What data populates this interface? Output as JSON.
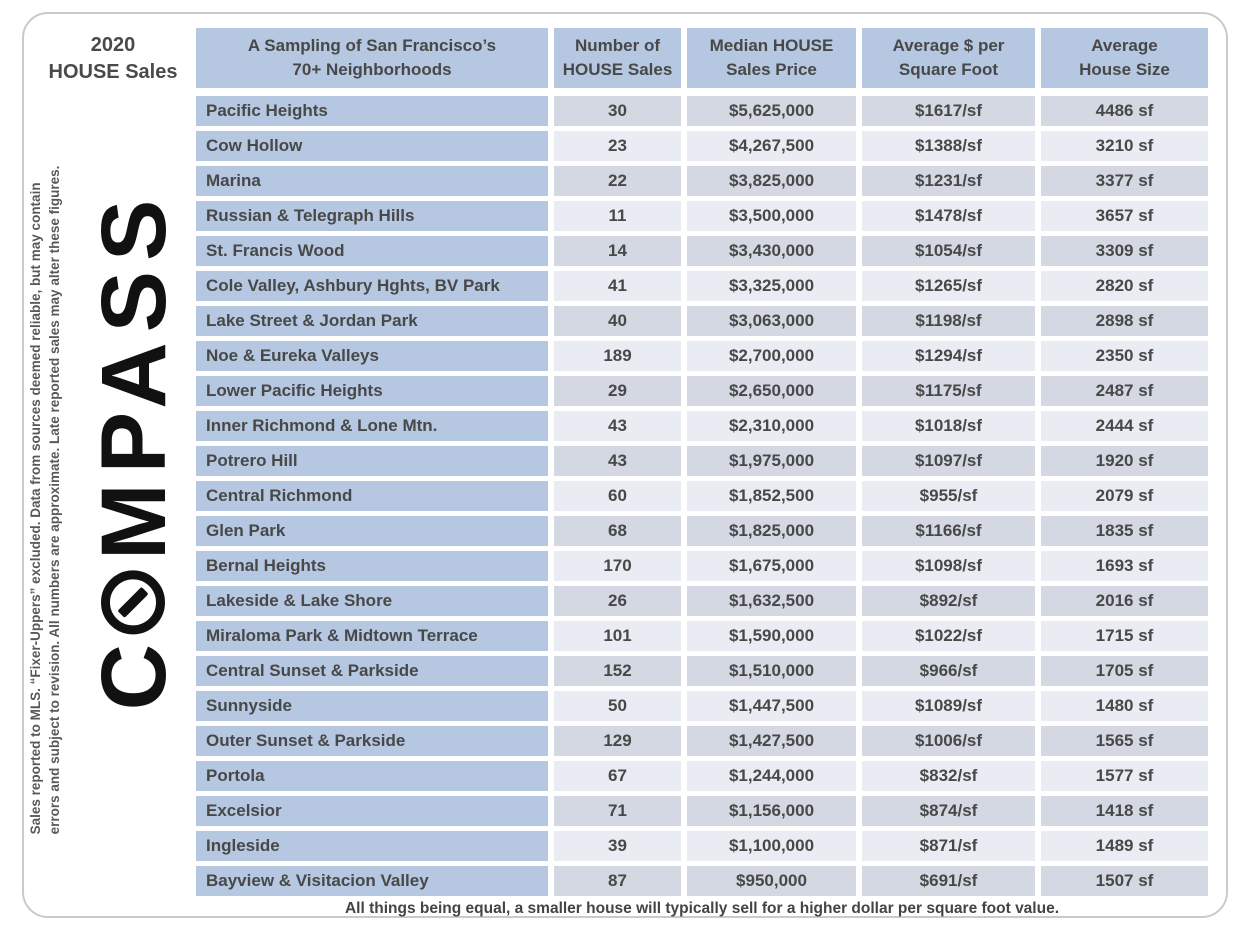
{
  "header": {
    "title_line1": "2020",
    "title_line2": "HOUSE Sales"
  },
  "sidebar": {
    "logo_brand": "COMPASS",
    "logo_letter_c": "C",
    "logo_letters_rest": "MPASS",
    "logo_o_icon": "compass-needle-in-circle",
    "disclaimer_line1": "Sales reported to MLS. “Fixer-Uppers” excluded. Data from sources deemed reliable, but may contain",
    "disclaimer_line2": "errors and subject to revision. All numbers are approximate. Late reported sales may alter these figures."
  },
  "footer": {
    "note": "All things being equal, a smaller house will typically sell for a higher dollar per square foot value."
  },
  "colors": {
    "header_blue": "#b5c7e1",
    "row_band_dark": "#d3d8e3",
    "row_band_light": "#e9ecf2",
    "table_text": "#484848",
    "frame_border": "#cacaca",
    "logo_black": "#111111"
  },
  "chart_data": {
    "type": "table",
    "title": "2020 HOUSE Sales",
    "columns": [
      {
        "line1": "A Sampling of San Francisco’s",
        "line2": "70+ Neighborhoods"
      },
      {
        "line1": "Number of",
        "line2": "HOUSE Sales"
      },
      {
        "line1": "Median HOUSE",
        "line2": "Sales Price"
      },
      {
        "line1": "Average $ per",
        "line2": "Square Foot"
      },
      {
        "line1": "Average",
        "line2": "House Size"
      }
    ],
    "rows": [
      [
        "Pacific Heights",
        "30",
        "$5,625,000",
        "$1617/sf",
        "4486 sf"
      ],
      [
        "Cow Hollow",
        "23",
        "$4,267,500",
        "$1388/sf",
        "3210 sf"
      ],
      [
        "Marina",
        "22",
        "$3,825,000",
        "$1231/sf",
        "3377 sf"
      ],
      [
        "Russian & Telegraph Hills",
        "11",
        "$3,500,000",
        "$1478/sf",
        "3657 sf"
      ],
      [
        "St. Francis Wood",
        "14",
        "$3,430,000",
        "$1054/sf",
        "3309 sf"
      ],
      [
        "Cole Valley, Ashbury Hghts, BV Park",
        "41",
        "$3,325,000",
        "$1265/sf",
        "2820 sf"
      ],
      [
        "Lake Street & Jordan Park",
        "40",
        "$3,063,000",
        "$1198/sf",
        "2898 sf"
      ],
      [
        "Noe & Eureka Valleys",
        "189",
        "$2,700,000",
        "$1294/sf",
        "2350 sf"
      ],
      [
        "Lower Pacific Heights",
        "29",
        "$2,650,000",
        "$1175/sf",
        "2487 sf"
      ],
      [
        "Inner Richmond & Lone Mtn.",
        "43",
        "$2,310,000",
        "$1018/sf",
        "2444 sf"
      ],
      [
        "Potrero Hill",
        "43",
        "$1,975,000",
        "$1097/sf",
        "1920 sf"
      ],
      [
        "Central Richmond",
        "60",
        "$1,852,500",
        "$955/sf",
        "2079 sf"
      ],
      [
        "Glen Park",
        "68",
        "$1,825,000",
        "$1166/sf",
        "1835 sf"
      ],
      [
        "Bernal Heights",
        "170",
        "$1,675,000",
        "$1098/sf",
        "1693 sf"
      ],
      [
        "Lakeside & Lake Shore",
        "26",
        "$1,632,500",
        "$892/sf",
        "2016 sf"
      ],
      [
        "Miraloma Park & Midtown Terrace",
        "101",
        "$1,590,000",
        "$1022/sf",
        "1715 sf"
      ],
      [
        "Central Sunset & Parkside",
        "152",
        "$1,510,000",
        "$966/sf",
        "1705 sf"
      ],
      [
        "Sunnyside",
        "50",
        "$1,447,500",
        "$1089/sf",
        "1480 sf"
      ],
      [
        "Outer Sunset & Parkside",
        "129",
        "$1,427,500",
        "$1006/sf",
        "1565 sf"
      ],
      [
        "Portola",
        "67",
        "$1,244,000",
        "$832/sf",
        "1577 sf"
      ],
      [
        "Excelsior",
        "71",
        "$1,156,000",
        "$874/sf",
        "1418 sf"
      ],
      [
        "Ingleside",
        "39",
        "$1,100,000",
        "$871/sf",
        "1489 sf"
      ],
      [
        "Bayview & Visitacion Valley",
        "87",
        "$950,000",
        "$691/sf",
        "1507 sf"
      ]
    ]
  }
}
